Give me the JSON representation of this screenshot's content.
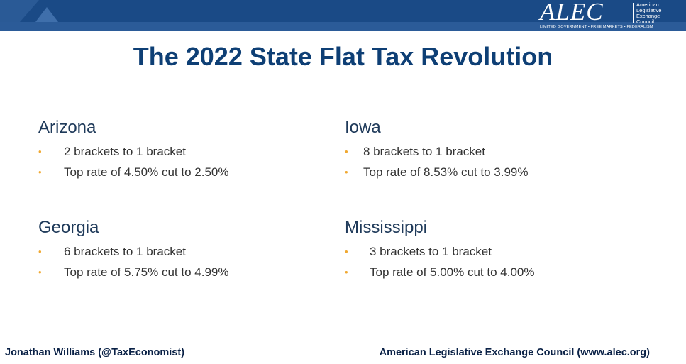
{
  "header": {
    "logo_text": "ALEC",
    "logo_fullname": [
      "American",
      "Legislative",
      "Exchange",
      "Council"
    ],
    "logo_tagline": "LIMITED GOVERNMENT • FREE MARKETS • FEDERALISM",
    "bar_color": "#1a4a86"
  },
  "slide": {
    "title": "The 2022 State Flat Tax Revolution",
    "states": [
      {
        "name": "Arizona",
        "points": [
          "2 brackets to 1 bracket",
          "Top rate of 4.50% cut to 2.50%"
        ]
      },
      {
        "name": "Iowa",
        "points": [
          "8 brackets to 1 bracket",
          "Top rate of 8.53% cut to 3.99%"
        ]
      },
      {
        "name": "Georgia",
        "points": [
          "6 brackets to 1 bracket",
          "Top rate of 5.75% cut to 4.99%"
        ]
      },
      {
        "name": "Mississippi",
        "points": [
          "3 brackets to 1 bracket",
          "Top rate of 5.00% cut to 4.00%"
        ]
      }
    ],
    "bullet_glyph": "•",
    "bullet_color": "#f0a830",
    "title_color": "#0e3f75"
  },
  "footer": {
    "left": "Jonathan Williams (@TaxEconomist)",
    "right": "American Legislative Exchange Council (www.alec.org)"
  }
}
